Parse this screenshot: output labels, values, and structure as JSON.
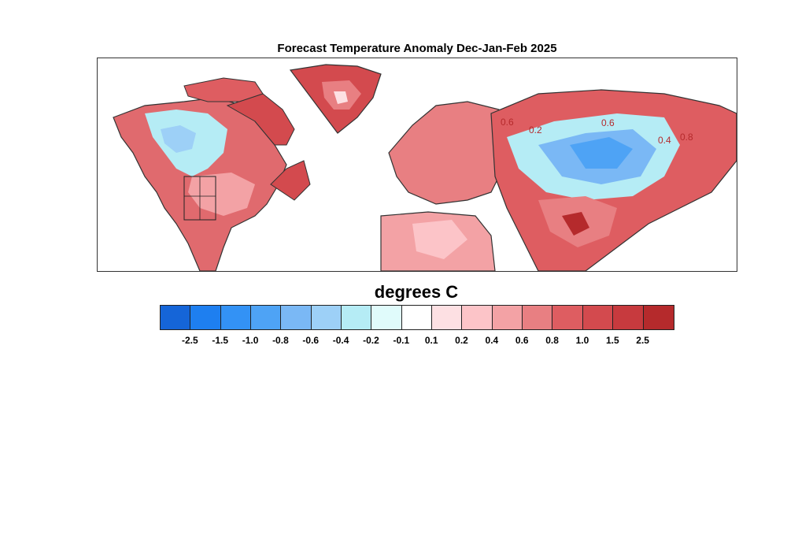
{
  "title": "Forecast Temperature Anomaly Dec-Jan-Feb 2025",
  "legend": {
    "title": "degrees C",
    "colors": [
      "#1565d8",
      "#1e7ff0",
      "#3392f5",
      "#4ea3f5",
      "#7ab8f5",
      "#9dd0f7",
      "#b5ecf5",
      "#e0fbfb",
      "#ffffff",
      "#fde0e3",
      "#fcc4c8",
      "#f3a2a5",
      "#e87f82",
      "#de5d61",
      "#d34a4e",
      "#c73a3e",
      "#b52a2c"
    ],
    "tick_labels": [
      "-2.5",
      "-1.5",
      "-1.0",
      "-0.8",
      "-0.6",
      "-0.4",
      "-0.2",
      "-0.1",
      "0.1",
      "0.2",
      "0.4",
      "0.6",
      "0.8",
      "1.0",
      "1.5",
      "2.5"
    ]
  },
  "map": {
    "contour_labels": [
      "0.6",
      "0.2",
      "0.6",
      "0.4",
      "0.8"
    ]
  }
}
